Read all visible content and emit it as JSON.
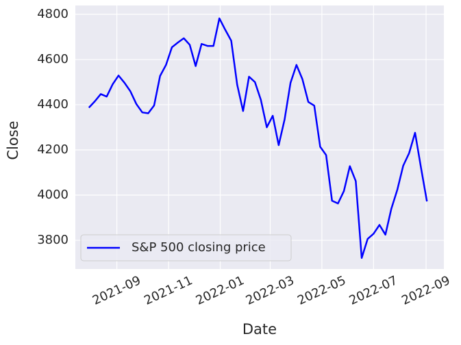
{
  "chart_data": {
    "type": "line",
    "xlabel": "Date",
    "ylabel": "Close",
    "x": [
      "2021-07-30",
      "2021-08-06",
      "2021-08-13",
      "2021-08-20",
      "2021-08-27",
      "2021-09-03",
      "2021-09-10",
      "2021-09-17",
      "2021-09-24",
      "2021-10-01",
      "2021-10-08",
      "2021-10-15",
      "2021-10-22",
      "2021-10-29",
      "2021-11-05",
      "2021-11-12",
      "2021-11-19",
      "2021-11-26",
      "2021-12-03",
      "2021-12-10",
      "2021-12-17",
      "2021-12-24",
      "2021-12-31",
      "2022-01-07",
      "2022-01-14",
      "2022-01-21",
      "2022-01-28",
      "2022-02-04",
      "2022-02-11",
      "2022-02-18",
      "2022-02-25",
      "2022-03-04",
      "2022-03-11",
      "2022-03-18",
      "2022-03-25",
      "2022-04-01",
      "2022-04-08",
      "2022-04-15",
      "2022-04-22",
      "2022-04-29",
      "2022-05-06",
      "2022-05-13",
      "2022-05-20",
      "2022-05-27",
      "2022-06-03",
      "2022-06-10",
      "2022-06-17",
      "2022-06-24",
      "2022-07-01",
      "2022-07-08",
      "2022-07-15",
      "2022-07-22",
      "2022-07-29",
      "2022-08-05",
      "2022-08-12",
      "2022-08-19",
      "2022-08-26",
      "2022-09-02"
    ],
    "series": [
      {
        "name": "S&P 500 closing price",
        "color": "#0000ff",
        "values": [
          4387,
          4415,
          4447,
          4436,
          4490,
          4529,
          4497,
          4459,
          4403,
          4366,
          4362,
          4397,
          4527,
          4576,
          4654,
          4675,
          4694,
          4665,
          4571,
          4669,
          4660,
          4660,
          4782,
          4731,
          4683,
          4489,
          4372,
          4524,
          4500,
          4421,
          4300,
          4351,
          4221,
          4335,
          4497,
          4576,
          4513,
          4412,
          4396,
          4214,
          4177,
          3975,
          3963,
          4018,
          4128,
          4062,
          3722,
          3806,
          3829,
          3868,
          3825,
          3940,
          4023,
          4130,
          4186,
          4276,
          4121,
          3972
        ]
      }
    ],
    "xlim": [
      "2021-07-14",
      "2022-09-22"
    ],
    "xticks": [
      {
        "value": "2021-09-01",
        "label": "2021-09"
      },
      {
        "value": "2021-11-01",
        "label": "2021-11"
      },
      {
        "value": "2022-01-01",
        "label": "2022-01"
      },
      {
        "value": "2022-03-01",
        "label": "2022-03"
      },
      {
        "value": "2022-05-01",
        "label": "2022-05"
      },
      {
        "value": "2022-07-01",
        "label": "2022-07"
      },
      {
        "value": "2022-09-01",
        "label": "2022-09"
      }
    ],
    "ylim": [
      3673,
      4839
    ],
    "yticks": [
      3800,
      4000,
      4200,
      4400,
      4600,
      4800
    ],
    "grid": true,
    "legend": "lower left"
  }
}
